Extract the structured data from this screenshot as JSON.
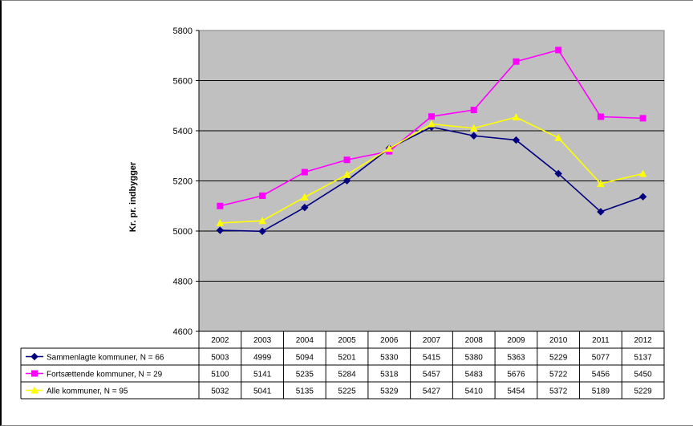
{
  "chart_data": {
    "type": "line",
    "ylabel": "Kr. pr. indbygger",
    "ylim": [
      4600,
      5800
    ],
    "yticks": [
      "5800",
      "5600",
      "5400",
      "5200",
      "5000",
      "4800",
      "4600"
    ],
    "grid": "horizontal",
    "categories": [
      "2002",
      "2003",
      "2004",
      "2005",
      "2006",
      "2007",
      "2008",
      "2009",
      "2010",
      "2011",
      "2012"
    ],
    "series": [
      {
        "name": "Sammenlagte kommuner, N = 66",
        "color": "#00007f",
        "marker": "diamond",
        "values": [
          5003,
          4999,
          5094,
          5201,
          5330,
          5415,
          5380,
          5363,
          5229,
          5077,
          5137
        ],
        "labels": [
          "5003",
          "4999",
          "5094",
          "5201",
          "5330",
          "5415",
          "5380",
          "5363",
          "5229",
          "5077",
          "5137"
        ]
      },
      {
        "name": "Fortsættende kommuner, N = 29",
        "color": "#ff00ff",
        "marker": "square",
        "values": [
          5100,
          5141,
          5235,
          5284,
          5318,
          5457,
          5483,
          5676,
          5722,
          5456,
          5450
        ],
        "labels": [
          "5100",
          "5141",
          "5235",
          "5284",
          "5318",
          "5457",
          "5483",
          "5676",
          "5722",
          "5456",
          "5450"
        ]
      },
      {
        "name": "Alle kommuner, N = 95",
        "color": "#ffff00",
        "marker": "triangle",
        "values": [
          5032,
          5041,
          5135,
          5225,
          5329,
          5427,
          5410,
          5454,
          5372,
          5189,
          5229
        ],
        "labels": [
          "5032",
          "5041",
          "5135",
          "5225",
          "5329",
          "5427",
          "5410",
          "5454",
          "5372",
          "5189",
          "5229"
        ]
      }
    ],
    "plot_background": "#c0c0c0"
  }
}
